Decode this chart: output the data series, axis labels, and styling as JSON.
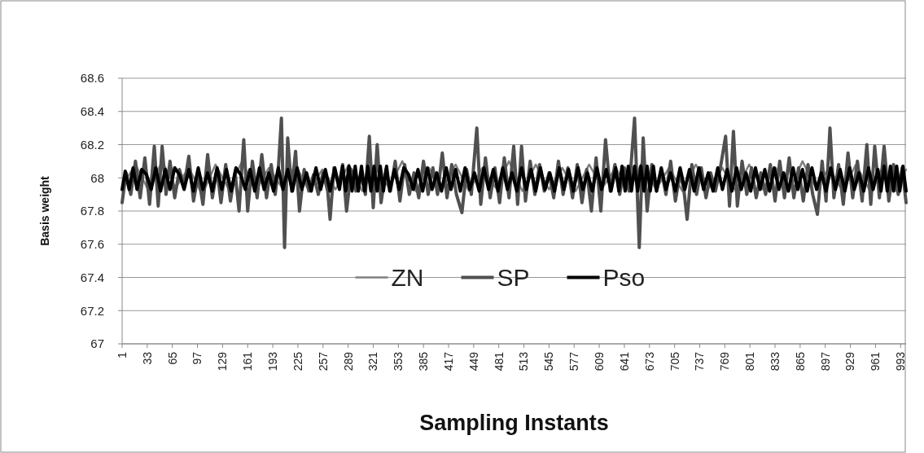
{
  "chart_data": {
    "type": "line",
    "xlabel": "Sampling Instants",
    "ylabel": "Basis weight",
    "xlim": [
      1,
      1000
    ],
    "xticks": [
      1,
      33,
      65,
      97,
      129,
      161,
      193,
      225,
      257,
      289,
      321,
      353,
      385,
      417,
      449,
      481,
      513,
      545,
      577,
      609,
      641,
      673,
      705,
      737,
      769,
      801,
      833,
      865,
      897,
      929,
      961,
      993
    ],
    "ylim": [
      67,
      68.6
    ],
    "yticks": [
      67,
      67.2,
      67.4,
      67.6,
      67.8,
      68,
      68.2,
      68.4,
      68.6
    ],
    "grid": "y",
    "legend": "bottom",
    "line_style": "solid",
    "series": [
      {
        "name": "ZN",
        "color": "#808080",
        "x": [
          1,
          18,
          35,
          52,
          69,
          86,
          103,
          120,
          137,
          154,
          171,
          188,
          205,
          222,
          239,
          256,
          273,
          290,
          307,
          324,
          341,
          358,
          375,
          392,
          409,
          426,
          443,
          460,
          477,
          494,
          511,
          528,
          545,
          562,
          579,
          596,
          613,
          630,
          647,
          664,
          681,
          698,
          715,
          732,
          749,
          766,
          783,
          800,
          817,
          834,
          851,
          868,
          885,
          902,
          919,
          936,
          953,
          970,
          987,
          1000
        ],
        "values": [
          67.95,
          68.08,
          67.92,
          68.1,
          67.94,
          68.06,
          67.9,
          68.08,
          67.93,
          68.1,
          67.92,
          68.06,
          67.94,
          68.08,
          67.92,
          68.05,
          67.93,
          68.08,
          67.92,
          68.06,
          67.94,
          68.1,
          67.92,
          68.06,
          67.93,
          68.08,
          67.92,
          68.06,
          67.94,
          68.1,
          67.92,
          68.08,
          67.93,
          68.06,
          67.92,
          68.08,
          67.94,
          68.06,
          67.92,
          68.1,
          67.93,
          68.06,
          67.92,
          68.08,
          67.94,
          68.06,
          67.92,
          68.08,
          67.93,
          68.06,
          67.92,
          68.1,
          67.94,
          68.06,
          67.92,
          68.08,
          67.93,
          68.06,
          67.92,
          68.05
        ]
      },
      {
        "name": "SP",
        "color": "#505050",
        "x": [
          1,
          6,
          12,
          18,
          24,
          30,
          36,
          42,
          47,
          52,
          57,
          62,
          68,
          74,
          80,
          86,
          92,
          98,
          104,
          110,
          116,
          122,
          127,
          133,
          139,
          145,
          150,
          156,
          161,
          167,
          173,
          179,
          185,
          191,
          196,
          200,
          204,
          208,
          212,
          217,
          222,
          227,
          233,
          239,
          245,
          251,
          257,
          263,
          266,
          271,
          277,
          282,
          287,
          293,
          299,
          305,
          311,
          316,
          321,
          326,
          331,
          337,
          343,
          349,
          355,
          361,
          367,
          373,
          379,
          385,
          391,
          397,
          403,
          409,
          415,
          421,
          427,
          434,
          440,
          446,
          453,
          458,
          464,
          470,
          476,
          482,
          488,
          494,
          500,
          505,
          510,
          515,
          521,
          527,
          533,
          539,
          545,
          551,
          557,
          563,
          569,
          575,
          581,
          587,
          593,
          599,
          605,
          611,
          617,
          623,
          629,
          635,
          641,
          647,
          654,
          660,
          665,
          670,
          676,
          682,
          688,
          694,
          700,
          706,
          712,
          717,
          721,
          727,
          733,
          739,
          745,
          751,
          757,
          763,
          770,
          775,
          780,
          785,
          791,
          797,
          803,
          809,
          815,
          821,
          827,
          833,
          839,
          845,
          851,
          857,
          863,
          869,
          875,
          881,
          887,
          893,
          898,
          903,
          908,
          914,
          920,
          926,
          932,
          938,
          944,
          950,
          955,
          960,
          966,
          972,
          978,
          984,
          990,
          995,
          1000
        ],
        "values": [
          67.85,
          68.03,
          67.9,
          68.1,
          67.88,
          68.12,
          67.84,
          68.19,
          67.83,
          68.19,
          67.9,
          68.1,
          67.88,
          68.05,
          67.95,
          68.13,
          67.86,
          68.02,
          67.84,
          68.14,
          67.88,
          68.05,
          67.85,
          68.08,
          67.86,
          68.03,
          67.8,
          68.23,
          67.8,
          68.1,
          67.88,
          68.14,
          67.88,
          68.08,
          67.9,
          68.05,
          68.36,
          67.58,
          68.24,
          67.92,
          68.16,
          67.8,
          68.05,
          67.92,
          68.02,
          67.9,
          68.03,
          67.92,
          67.75,
          68.06,
          67.95,
          68.08,
          67.8,
          68.05,
          67.92,
          68.02,
          67.9,
          68.25,
          67.82,
          68.2,
          67.85,
          68.05,
          67.92,
          68.1,
          67.86,
          68.08,
          67.9,
          68.03,
          67.88,
          68.1,
          67.9,
          68.06,
          67.9,
          68.15,
          67.88,
          68.08,
          67.9,
          67.79,
          68.05,
          67.9,
          68.3,
          67.84,
          68.12,
          67.88,
          68.06,
          67.85,
          68.12,
          67.88,
          68.19,
          67.84,
          68.19,
          67.86,
          68.1,
          67.9,
          68.08,
          67.92,
          68.03,
          67.88,
          68.1,
          67.9,
          68.06,
          67.88,
          68.08,
          67.85,
          68.05,
          67.8,
          68.12,
          67.8,
          68.23,
          67.92,
          68.08,
          67.9,
          68.06,
          67.92,
          68.36,
          67.58,
          68.24,
          67.8,
          68.08,
          67.92,
          68.05,
          67.9,
          68.1,
          67.86,
          68.03,
          67.92,
          67.75,
          68.08,
          67.9,
          68.06,
          67.88,
          68.03,
          67.92,
          68.05,
          68.25,
          67.83,
          68.28,
          67.83,
          68.1,
          67.9,
          68.06,
          67.88,
          68.03,
          67.9,
          68.08,
          67.86,
          68.1,
          67.88,
          68.12,
          67.88,
          68.06,
          67.86,
          68.08,
          67.9,
          67.78,
          68.1,
          67.86,
          68.3,
          67.88,
          68.08,
          67.84,
          68.15,
          67.88,
          68.1,
          67.86,
          68.2,
          67.84,
          68.19,
          67.88,
          68.19,
          67.86,
          68.08,
          67.9,
          68.06,
          67.85
        ]
      },
      {
        "name": "Pso",
        "color": "#000000",
        "x": [
          1,
          5,
          10,
          15,
          20,
          26,
          32,
          38,
          44,
          50,
          56,
          62,
          68,
          74,
          80,
          86,
          92,
          98,
          104,
          110,
          116,
          122,
          128,
          134,
          140,
          146,
          152,
          158,
          164,
          170,
          176,
          182,
          188,
          194,
          200,
          206,
          212,
          218,
          224,
          230,
          236,
          242,
          248,
          254,
          260,
          266,
          272,
          278,
          282,
          286,
          290,
          294,
          298,
          302,
          306,
          310,
          314,
          318,
          322,
          326,
          330,
          334,
          338,
          342,
          348,
          354,
          360,
          366,
          372,
          378,
          384,
          390,
          396,
          402,
          408,
          414,
          420,
          426,
          432,
          438,
          444,
          450,
          456,
          462,
          468,
          474,
          480,
          486,
          492,
          498,
          504,
          510,
          516,
          522,
          528,
          534,
          540,
          546,
          552,
          558,
          564,
          570,
          576,
          582,
          588,
          594,
          600,
          606,
          612,
          618,
          624,
          630,
          634,
          638,
          642,
          646,
          650,
          654,
          658,
          662,
          666,
          670,
          674,
          678,
          682,
          688,
          694,
          700,
          706,
          712,
          718,
          724,
          730,
          736,
          742,
          748,
          754,
          760,
          766,
          772,
          778,
          784,
          790,
          796,
          802,
          808,
          814,
          820,
          826,
          832,
          838,
          844,
          850,
          856,
          862,
          868,
          874,
          880,
          886,
          892,
          898,
          904,
          910,
          916,
          922,
          928,
          934,
          940,
          946,
          952,
          958,
          964,
          968,
          972,
          976,
          980,
          984,
          988,
          992,
          996,
          1000
        ],
        "values": [
          67.93,
          68.04,
          67.93,
          68.06,
          67.93,
          68.05,
          68.02,
          67.93,
          68.06,
          67.92,
          68.05,
          67.93,
          68.06,
          68.02,
          67.93,
          68.05,
          67.92,
          68.06,
          67.93,
          68.03,
          67.92,
          68.06,
          67.93,
          68.05,
          67.92,
          68.06,
          68.02,
          67.93,
          68.05,
          67.92,
          68.06,
          67.93,
          68.03,
          67.92,
          68.06,
          67.93,
          68.05,
          67.92,
          68.06,
          67.93,
          68.03,
          67.92,
          68.06,
          67.93,
          68.05,
          67.92,
          68.06,
          67.93,
          68.07,
          67.92,
          68.07,
          67.92,
          68.07,
          67.92,
          68.07,
          67.92,
          68.07,
          67.92,
          68.07,
          67.92,
          68.07,
          67.92,
          68.07,
          67.92,
          68.05,
          67.93,
          68.06,
          68.02,
          67.93,
          68.05,
          67.92,
          68.06,
          67.93,
          68.03,
          67.92,
          68.06,
          67.93,
          68.05,
          67.92,
          68.06,
          67.93,
          68.03,
          67.92,
          68.06,
          67.93,
          68.05,
          67.92,
          68.06,
          67.93,
          68.03,
          67.92,
          68.06,
          67.93,
          68.05,
          67.92,
          68.06,
          67.93,
          68.03,
          67.92,
          68.06,
          67.93,
          68.05,
          67.92,
          68.06,
          67.93,
          68.03,
          67.92,
          68.06,
          67.93,
          68.05,
          67.92,
          68.06,
          67.92,
          68.07,
          67.92,
          68.07,
          67.92,
          68.07,
          67.92,
          68.07,
          67.92,
          68.07,
          67.92,
          68.07,
          67.92,
          68.06,
          67.93,
          68.03,
          67.92,
          68.06,
          67.93,
          68.05,
          67.92,
          68.06,
          67.93,
          68.03,
          67.92,
          68.06,
          67.93,
          68.05,
          67.92,
          68.06,
          67.93,
          68.03,
          67.92,
          68.06,
          67.93,
          68.05,
          67.92,
          68.06,
          67.93,
          68.03,
          67.92,
          68.06,
          67.93,
          68.05,
          67.92,
          68.06,
          67.93,
          68.03,
          67.92,
          68.06,
          67.93,
          68.05,
          67.92,
          68.06,
          67.93,
          68.03,
          67.92,
          68.06,
          67.93,
          68.05,
          67.92,
          68.07,
          67.92,
          68.07,
          67.92,
          68.07,
          67.92,
          68.07,
          67.92
        ]
      }
    ]
  }
}
